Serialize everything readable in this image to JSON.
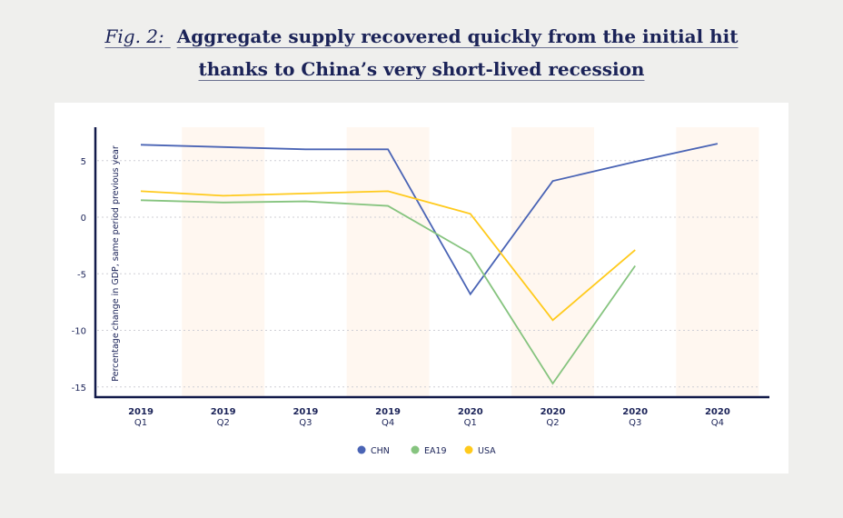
{
  "title": {
    "prefix": "Fig. 2:",
    "line1": "Aggregate supply recovered quickly from the initial hit",
    "line2": "thanks to China’s very short-lived recession"
  },
  "chart_data": {
    "type": "line",
    "title": "Fig. 2: Aggregate supply recovered quickly from the initial hit thanks to China’s very short-lived recession",
    "ylabel": "Percentage change in GDP, same period previous year",
    "xlabel": "",
    "categories": [
      [
        "2019",
        "Q1"
      ],
      [
        "2019",
        "Q2"
      ],
      [
        "2019",
        "Q3"
      ],
      [
        "2019",
        "Q4"
      ],
      [
        "2020",
        "Q1"
      ],
      [
        "2020",
        "Q2"
      ],
      [
        "2020",
        "Q3"
      ],
      [
        "2020",
        "Q4"
      ]
    ],
    "yticks": [
      5,
      0,
      -5,
      -10,
      -15
    ],
    "ylim": [
      -16,
      7.8
    ],
    "grid": true,
    "shaded_categories": [
      1,
      3,
      5,
      7
    ],
    "legend_position": "bottom-center",
    "series": [
      {
        "name": "CHN",
        "color": "#4a64b5",
        "values": [
          6.4,
          6.2,
          6.0,
          6.0,
          -6.8,
          3.2,
          4.9,
          6.5
        ]
      },
      {
        "name": "EA19",
        "color": "#86c47f",
        "values": [
          1.5,
          1.3,
          1.4,
          1.0,
          -3.2,
          -14.7,
          -4.3,
          null
        ]
      },
      {
        "name": "USA",
        "color": "#ffca1c",
        "values": [
          2.3,
          1.9,
          2.1,
          2.3,
          0.3,
          -9.1,
          -2.9,
          null
        ]
      }
    ]
  }
}
